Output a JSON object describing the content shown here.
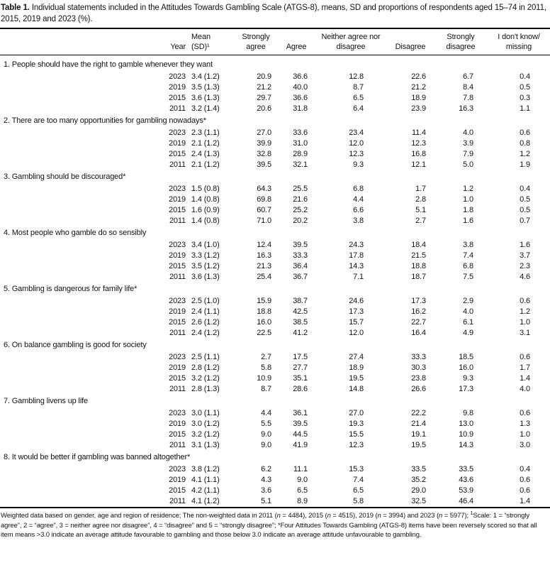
{
  "title": {
    "label": "Table 1.",
    "text": "Individual statements included in the Attitudes Towards Gambling Scale (ATGS-8), means, SD and proportions of respondents aged 15–74 in 2011, 2015, 2019 and 2023 (%)."
  },
  "table": {
    "columns": [
      {
        "key": "statement",
        "header": ""
      },
      {
        "key": "year",
        "header": "Year"
      },
      {
        "key": "mean_sd",
        "header": "Mean\n(SD)¹"
      },
      {
        "key": "strongly_agree",
        "header": "Strongly\nagree"
      },
      {
        "key": "agree",
        "header": "Agree"
      },
      {
        "key": "neither",
        "header": "Neither agree nor\ndisagree"
      },
      {
        "key": "disagree",
        "header": "Disagree"
      },
      {
        "key": "strongly_disagree",
        "header": "Strongly\ndisagree"
      },
      {
        "key": "dont_know",
        "header": "I don't know/\nmissing"
      }
    ],
    "sections": [
      {
        "statement": "1. People should have the right to gamble whenever they want",
        "rows": [
          {
            "year": "2023",
            "mean_sd": "3.4 (1.2)",
            "strongly_agree": "20.9",
            "agree": "36.6",
            "neither": "12.8",
            "disagree": "22.6",
            "strongly_disagree": "6.7",
            "dont_know": "0.4"
          },
          {
            "year": "2019",
            "mean_sd": "3.5 (1.3)",
            "strongly_agree": "21.2",
            "agree": "40.0",
            "neither": "8.7",
            "disagree": "21.2",
            "strongly_disagree": "8.4",
            "dont_know": "0.5"
          },
          {
            "year": "2015",
            "mean_sd": "3.6 (1.3)",
            "strongly_agree": "29.7",
            "agree": "36.6",
            "neither": "6.5",
            "disagree": "18.9",
            "strongly_disagree": "7.8",
            "dont_know": "0.3"
          },
          {
            "year": "2011",
            "mean_sd": "3.2 (1.4)",
            "strongly_agree": "20.6",
            "agree": "31.8",
            "neither": "6.4",
            "disagree": "23.9",
            "strongly_disagree": "16.3",
            "dont_know": "1.1"
          }
        ]
      },
      {
        "statement": "2. There are too many opportunities for gambling nowadays*",
        "rows": [
          {
            "year": "2023",
            "mean_sd": "2.3 (1.1)",
            "strongly_agree": "27.0",
            "agree": "33.6",
            "neither": "23.4",
            "disagree": "11.4",
            "strongly_disagree": "4.0",
            "dont_know": "0.6"
          },
          {
            "year": "2019",
            "mean_sd": "2.1 (1.2)",
            "strongly_agree": "39.9",
            "agree": "31.0",
            "neither": "12.0",
            "disagree": "12.3",
            "strongly_disagree": "3.9",
            "dont_know": "0.8"
          },
          {
            "year": "2015",
            "mean_sd": "2.4 (1.3)",
            "strongly_agree": "32.8",
            "agree": "28.9",
            "neither": "12.3",
            "disagree": "16.8",
            "strongly_disagree": "7.9",
            "dont_know": "1.2"
          },
          {
            "year": "2011",
            "mean_sd": "2.1 (1.2)",
            "strongly_agree": "39.5",
            "agree": "32.1",
            "neither": "9.3",
            "disagree": "12.1",
            "strongly_disagree": "5.0",
            "dont_know": "1.9"
          }
        ]
      },
      {
        "statement": "3. Gambling should be discouraged*",
        "rows": [
          {
            "year": "2023",
            "mean_sd": "1.5 (0.8)",
            "strongly_agree": "64.3",
            "agree": "25.5",
            "neither": "6.8",
            "disagree": "1.7",
            "strongly_disagree": "1.2",
            "dont_know": "0.4"
          },
          {
            "year": "2019",
            "mean_sd": "1.4 (0.8)",
            "strongly_agree": "69.8",
            "agree": "21.6",
            "neither": "4.4",
            "disagree": "2.8",
            "strongly_disagree": "1.0",
            "dont_know": "0.5"
          },
          {
            "year": "2015",
            "mean_sd": "1.6 (0.9)",
            "strongly_agree": "60.7",
            "agree": "25.2",
            "neither": "6.6",
            "disagree": "5.1",
            "strongly_disagree": "1.8",
            "dont_know": "0.5"
          },
          {
            "year": "2011",
            "mean_sd": "1.4 (0.8)",
            "strongly_agree": "71.0",
            "agree": "20.2",
            "neither": "3.8",
            "disagree": "2.7",
            "strongly_disagree": "1.6",
            "dont_know": "0.7"
          }
        ]
      },
      {
        "statement": "4. Most people who gamble do so sensibly",
        "rows": [
          {
            "year": "2023",
            "mean_sd": "3.4 (1.0)",
            "strongly_agree": "12.4",
            "agree": "39.5",
            "neither": "24.3",
            "disagree": "18.4",
            "strongly_disagree": "3.8",
            "dont_know": "1.6"
          },
          {
            "year": "2019",
            "mean_sd": "3.3 (1.2)",
            "strongly_agree": "16.3",
            "agree": "33.3",
            "neither": "17.8",
            "disagree": "21.5",
            "strongly_disagree": "7.4",
            "dont_know": "3.7"
          },
          {
            "year": "2015",
            "mean_sd": "3.5 (1.2)",
            "strongly_agree": "21.3",
            "agree": "36.4",
            "neither": "14.3",
            "disagree": "18.8",
            "strongly_disagree": "6.8",
            "dont_know": "2.3"
          },
          {
            "year": "2011",
            "mean_sd": "3.6 (1.3)",
            "strongly_agree": "25.4",
            "agree": "36.7",
            "neither": "7.1",
            "disagree": "18.7",
            "strongly_disagree": "7.5",
            "dont_know": "4.6"
          }
        ]
      },
      {
        "statement": "5. Gambling is dangerous for family life*",
        "rows": [
          {
            "year": "2023",
            "mean_sd": "2.5 (1.0)",
            "strongly_agree": "15.9",
            "agree": "38.7",
            "neither": "24.6",
            "disagree": "17.3",
            "strongly_disagree": "2.9",
            "dont_know": "0.6"
          },
          {
            "year": "2019",
            "mean_sd": "2.4 (1.1)",
            "strongly_agree": "18.8",
            "agree": "42.5",
            "neither": "17.3",
            "disagree": "16.2",
            "strongly_disagree": "4.0",
            "dont_know": "1.2"
          },
          {
            "year": "2015",
            "mean_sd": "2.6 (1.2)",
            "strongly_agree": "16.0",
            "agree": "38.5",
            "neither": "15.7",
            "disagree": "22.7",
            "strongly_disagree": "6.1",
            "dont_know": "1.0"
          },
          {
            "year": "2011",
            "mean_sd": "2.4 (1.2)",
            "strongly_agree": "22.5",
            "agree": "41.2",
            "neither": "12.0",
            "disagree": "16.4",
            "strongly_disagree": "4.9",
            "dont_know": "3.1"
          }
        ]
      },
      {
        "statement": "6. On balance gambling is good for society",
        "rows": [
          {
            "year": "2023",
            "mean_sd": "2.5 (1.1)",
            "strongly_agree": "2.7",
            "agree": "17.5",
            "neither": "27.4",
            "disagree": "33.3",
            "strongly_disagree": "18.5",
            "dont_know": "0.6"
          },
          {
            "year": "2019",
            "mean_sd": "2.8 (1.2)",
            "strongly_agree": "5.8",
            "agree": "27.7",
            "neither": "18.9",
            "disagree": "30.3",
            "strongly_disagree": "16.0",
            "dont_know": "1.7"
          },
          {
            "year": "2015",
            "mean_sd": "3.2 (1.2)",
            "strongly_agree": "10.9",
            "agree": "35.1",
            "neither": "19.5",
            "disagree": "23.8",
            "strongly_disagree": "9.3",
            "dont_know": "1.4"
          },
          {
            "year": "2011",
            "mean_sd": "2.8 (1.3)",
            "strongly_agree": "8.7",
            "agree": "28.6",
            "neither": "14.8",
            "disagree": "26.6",
            "strongly_disagree": "17.3",
            "dont_know": "4.0"
          }
        ]
      },
      {
        "statement": "7. Gambling livens up life",
        "rows": [
          {
            "year": "2023",
            "mean_sd": "3.0 (1.1)",
            "strongly_agree": "4.4",
            "agree": "36.1",
            "neither": "27.0",
            "disagree": "22.2",
            "strongly_disagree": "9.8",
            "dont_know": "0.6"
          },
          {
            "year": "2019",
            "mean_sd": "3.0 (1.2)",
            "strongly_agree": "5.5",
            "agree": "39.5",
            "neither": "19.3",
            "disagree": "21.4",
            "strongly_disagree": "13.0",
            "dont_know": "1.3"
          },
          {
            "year": "2015",
            "mean_sd": "3.2 (1.2)",
            "strongly_agree": "9.0",
            "agree": "44.5",
            "neither": "15.5",
            "disagree": "19.1",
            "strongly_disagree": "10.9",
            "dont_know": "1.0"
          },
          {
            "year": "2011",
            "mean_sd": "3.1 (1.3)",
            "strongly_agree": "9.0",
            "agree": "41.9",
            "neither": "12.3",
            "disagree": "19.5",
            "strongly_disagree": "14.3",
            "dont_know": "3.0"
          }
        ]
      },
      {
        "statement": "8. It would be better if gambling was banned altogether*",
        "rows": [
          {
            "year": "2023",
            "mean_sd": "3.8 (1.2)",
            "strongly_agree": "6.2",
            "agree": "11.1",
            "neither": "15.3",
            "disagree": "33.5",
            "strongly_disagree": "33.5",
            "dont_know": "0.4"
          },
          {
            "year": "2019",
            "mean_sd": "4.1 (1.1)",
            "strongly_agree": "4.3",
            "agree": "9.0",
            "neither": "7.4",
            "disagree": "35.2",
            "strongly_disagree": "43.6",
            "dont_know": "0.6"
          },
          {
            "year": "2015",
            "mean_sd": "4.2 (1.1)",
            "strongly_agree": "3.6",
            "agree": "6.5",
            "neither": "6.5",
            "disagree": "29.0",
            "strongly_disagree": "53.9",
            "dont_know": "0.6"
          },
          {
            "year": "2011",
            "mean_sd": "4.1 (1.2)",
            "strongly_agree": "5.1",
            "agree": "8.9",
            "neither": "5.8",
            "disagree": "32.5",
            "strongly_disagree": "46.4",
            "dont_know": "1.4"
          }
        ]
      }
    ]
  },
  "footnote": {
    "segments": [
      {
        "text": "Weighted data based on gender, age and region of residence; The non-weighted data in 2011 (",
        "style": "plain"
      },
      {
        "text": "n",
        "style": "italic"
      },
      {
        "text": " = 4484), 2015 (",
        "style": "plain"
      },
      {
        "text": "n",
        "style": "italic"
      },
      {
        "text": " = 4515), 2019 (",
        "style": "plain"
      },
      {
        "text": "n",
        "style": "italic"
      },
      {
        "text": " = 3994) and 2023 (",
        "style": "plain"
      },
      {
        "text": "n",
        "style": "italic"
      },
      {
        "text": " = 5977); ",
        "style": "plain"
      },
      {
        "text": "1",
        "style": "sup"
      },
      {
        "text": "Scale: 1 = “strongly agree”, 2 = “agree”, 3 = neither agree nor disagree”, 4 = “disagree” and 5 = “strongly disagree”; *Four Attitudes Towards Gambling (ATGS-8) items have been reversely scored so that all item means >3.0 indicate an average attitude favourable to gambling and those below 3.0 indicate an average attitude unfavourable to gambling.",
        "style": "plain"
      }
    ]
  }
}
